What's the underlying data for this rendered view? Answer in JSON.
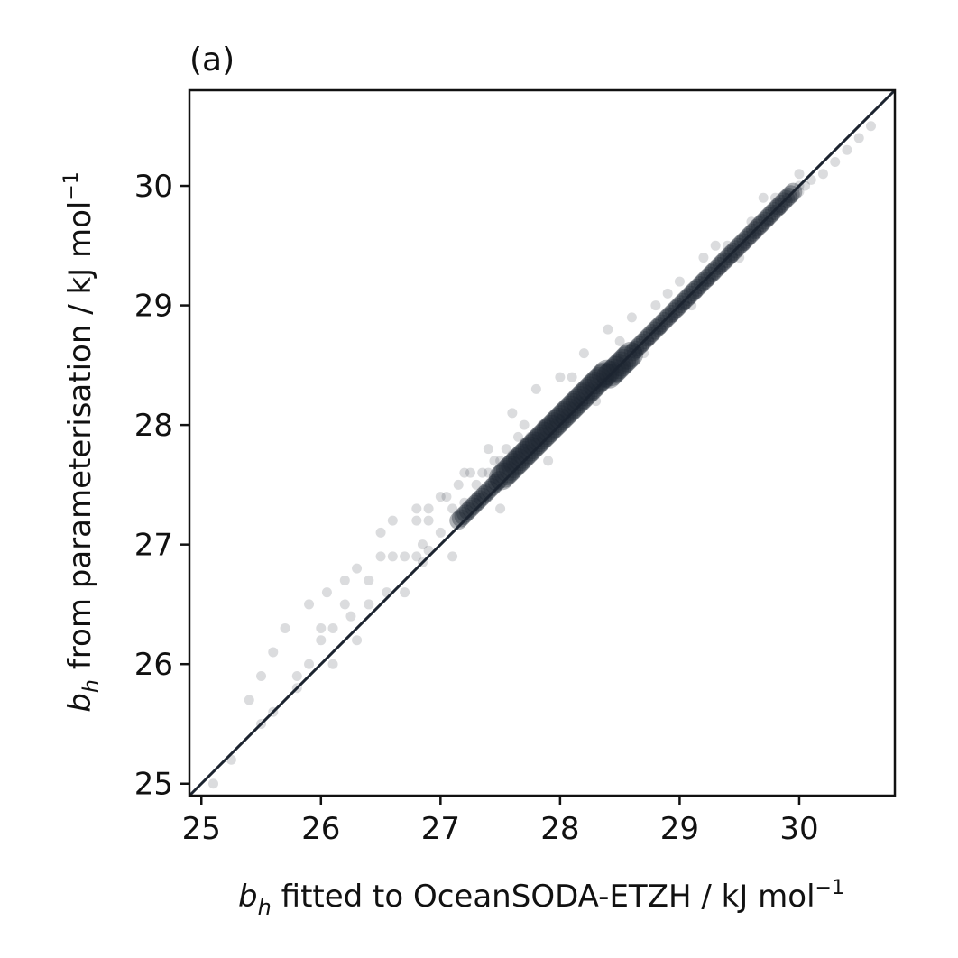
{
  "chart_data": {
    "type": "scatter",
    "panel_label": "(a)",
    "xlabel": {
      "symbol": "b",
      "subscript": "h",
      "text": " fitted to OceanSODA-ETZH / kJ mol",
      "superscript": "−1"
    },
    "ylabel": {
      "symbol": "b",
      "subscript": "h",
      "text": " from parameterisation / kJ mol",
      "superscript": "−1"
    },
    "xlim": [
      24.9,
      30.8
    ],
    "ylim": [
      24.9,
      30.8
    ],
    "x_ticks": [
      25,
      26,
      27,
      28,
      29,
      30
    ],
    "y_ticks": [
      25,
      26,
      27,
      28,
      29,
      30
    ],
    "x_tick_labels": [
      "25",
      "26",
      "27",
      "28",
      "29",
      "30"
    ],
    "y_tick_labels": [
      "25",
      "26",
      "27",
      "28",
      "29",
      "30"
    ],
    "grid": false,
    "reference_line": {
      "type": "1:1",
      "from": [
        24.9,
        24.9
      ],
      "to": [
        30.8,
        30.8
      ],
      "color": "#1c2430"
    },
    "point_color": "#1c2430",
    "series": [
      {
        "x": [
          25.1,
          25.25,
          25.4,
          25.5,
          25.6,
          25.7,
          25.8,
          25.9,
          26.0,
          26.05,
          26.1,
          26.2,
          26.25,
          26.3,
          26.4,
          26.5,
          26.55,
          26.6,
          26.7,
          26.8,
          26.85,
          26.9,
          27.0,
          27.05,
          27.1,
          27.15,
          27.2,
          27.25,
          27.3,
          27.35,
          27.4,
          27.45,
          27.5,
          27.55,
          27.6,
          27.65,
          27.7,
          27.75,
          27.8,
          27.85,
          27.9,
          27.95,
          28.0,
          28.05,
          28.1,
          28.15,
          28.2,
          28.25,
          28.3,
          28.35,
          28.4,
          28.45,
          28.5,
          28.55,
          28.6,
          28.65,
          28.7,
          28.75,
          28.8,
          28.85,
          28.9,
          28.95,
          29.0,
          29.05,
          29.1,
          29.15,
          29.2,
          29.25,
          29.3,
          29.35,
          29.4,
          29.45,
          29.5,
          29.55,
          29.6,
          29.65,
          29.7,
          29.75,
          29.8,
          29.85,
          29.9,
          29.95,
          30.0,
          30.05,
          30.1,
          30.2,
          30.3,
          30.4,
          30.5,
          30.6,
          25.5,
          25.8,
          26.0,
          26.2,
          26.4,
          26.6,
          26.8,
          27.0,
          27.2,
          27.4,
          27.6,
          27.8,
          28.0,
          28.2,
          28.4,
          28.6,
          28.8,
          29.0,
          29.2,
          29.4,
          29.6,
          29.8,
          30.0,
          25.6,
          25.9,
          26.3,
          26.7,
          27.1,
          27.5,
          27.9,
          28.3,
          28.7,
          29.1,
          29.5,
          29.9,
          26.1,
          26.5,
          26.9,
          27.3,
          27.7,
          28.1,
          28.5,
          28.9,
          29.3,
          29.7,
          27.45,
          27.55,
          27.65,
          27.75,
          27.85,
          27.95,
          28.05,
          28.15,
          28.25,
          28.35,
          28.45,
          28.55,
          28.65,
          28.75,
          28.85,
          28.95,
          29.05,
          29.15,
          29.25,
          29.35,
          29.45,
          29.55,
          29.65,
          29.75,
          29.85,
          26.8,
          26.85,
          26.9,
          27.25,
          27.3,
          27.35,
          27.5,
          27.6,
          27.7,
          27.8,
          27.9,
          28.0,
          28.1,
          28.2,
          28.3,
          28.4,
          28.6,
          28.8,
          29.0,
          29.2,
          29.4,
          29.6,
          29.8,
          30.0
        ],
        "y": [
          25.0,
          25.2,
          25.7,
          25.9,
          26.1,
          26.3,
          25.9,
          26.5,
          26.2,
          26.6,
          26.0,
          26.7,
          26.4,
          26.8,
          26.5,
          27.1,
          26.6,
          27.2,
          26.9,
          27.2,
          27.0,
          27.3,
          27.1,
          27.4,
          27.3,
          27.5,
          27.35,
          27.6,
          27.4,
          27.6,
          27.6,
          27.7,
          27.7,
          27.8,
          27.75,
          27.9,
          27.85,
          27.9,
          27.9,
          28.0,
          28.0,
          28.05,
          28.05,
          28.1,
          28.1,
          28.2,
          28.2,
          28.3,
          28.3,
          28.35,
          28.35,
          28.45,
          28.45,
          28.5,
          28.55,
          28.6,
          28.65,
          28.7,
          28.75,
          28.8,
          28.85,
          28.9,
          28.95,
          29.0,
          29.05,
          29.1,
          29.15,
          29.2,
          29.25,
          29.3,
          29.35,
          29.4,
          29.45,
          29.5,
          29.55,
          29.6,
          29.65,
          29.7,
          29.75,
          29.8,
          29.85,
          29.9,
          29.95,
          30.0,
          30.05,
          30.1,
          30.2,
          30.3,
          30.4,
          30.5,
          25.5,
          25.8,
          26.3,
          26.5,
          26.7,
          26.9,
          27.3,
          27.4,
          27.6,
          27.8,
          28.1,
          28.3,
          28.4,
          28.6,
          28.8,
          28.9,
          29.0,
          29.2,
          29.4,
          29.5,
          29.7,
          29.9,
          30.1,
          25.6,
          26.0,
          26.2,
          26.6,
          26.9,
          27.3,
          27.7,
          28.2,
          28.6,
          29.0,
          29.4,
          29.9,
          26.3,
          26.9,
          27.2,
          27.5,
          28.0,
          28.4,
          28.7,
          29.1,
          29.5,
          29.9,
          27.55,
          27.65,
          27.75,
          27.8,
          27.9,
          28.0,
          28.05,
          28.15,
          28.25,
          28.35,
          28.4,
          28.5,
          28.6,
          28.7,
          28.8,
          28.9,
          29.0,
          29.1,
          29.2,
          29.3,
          29.4,
          29.5,
          29.6,
          29.7,
          29.8,
          26.9,
          26.85,
          26.95,
          27.3,
          27.35,
          27.4,
          27.6,
          27.7,
          27.8,
          27.85,
          27.95,
          28.05,
          28.15,
          28.2,
          28.3,
          28.4,
          28.6,
          28.8,
          29.0,
          29.2,
          29.4,
          29.6,
          29.8,
          30.0
        ]
      }
    ]
  }
}
